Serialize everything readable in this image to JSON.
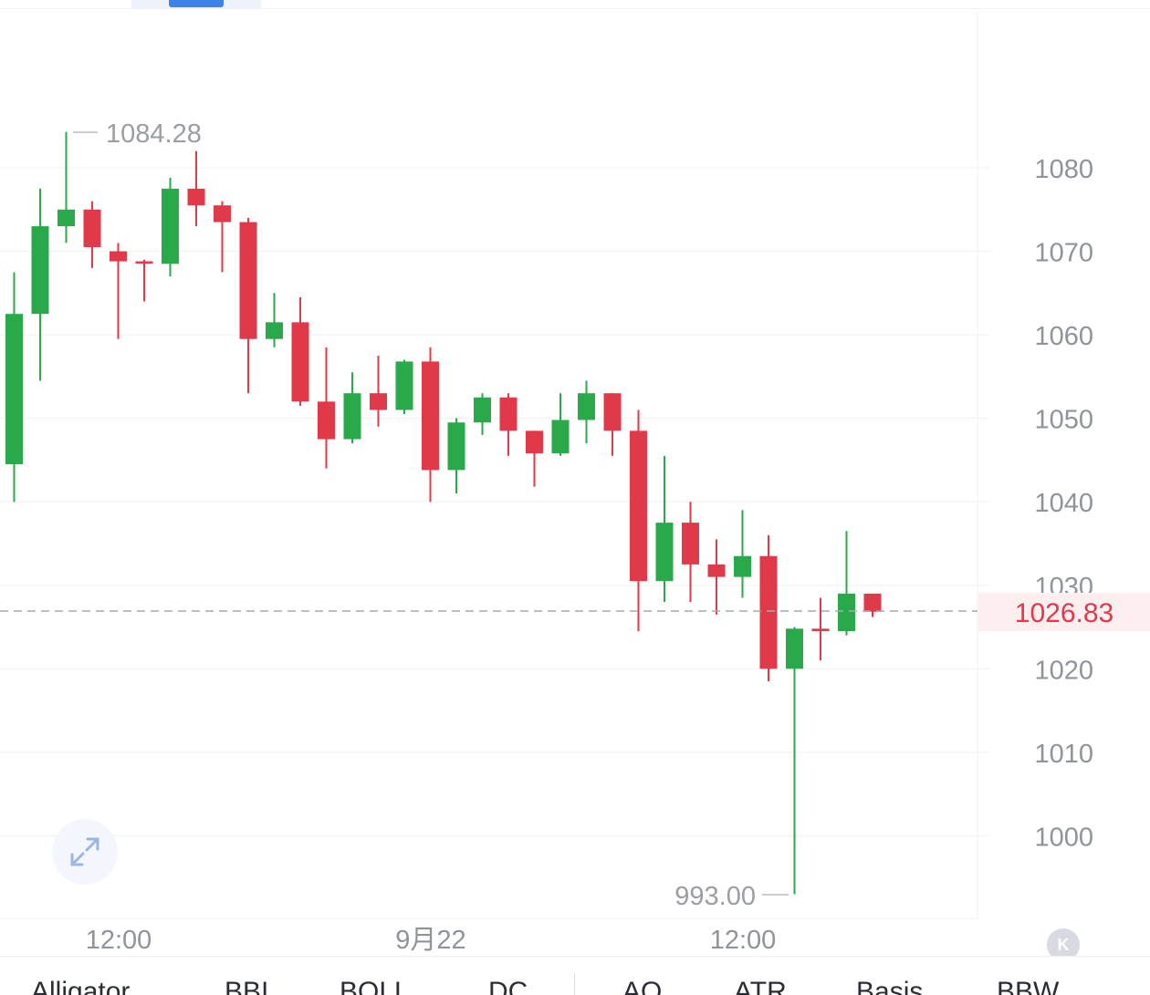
{
  "chart_data": {
    "type": "candlestick",
    "y_ticks": [
      1080,
      1070,
      1060,
      1050,
      1040,
      1030,
      1020,
      1010,
      1000
    ],
    "x_tick_labels": [
      "12:00",
      "9月22",
      "12:00"
    ],
    "current_price": "1026.83",
    "high_label": "1084.28",
    "low_label": "993.00",
    "up_color": "#2aa94a",
    "down_color": "#e0394a",
    "candles": [
      {
        "o": 1044.5,
        "h": 1067.5,
        "l": 1040.0,
        "c": 1062.5
      },
      {
        "o": 1062.5,
        "h": 1077.5,
        "l": 1054.5,
        "c": 1073.0
      },
      {
        "o": 1073.0,
        "h": 1084.3,
        "l": 1071.0,
        "c": 1075.0
      },
      {
        "o": 1075.0,
        "h": 1076.0,
        "l": 1068.0,
        "c": 1070.5
      },
      {
        "o": 1070.0,
        "h": 1071.0,
        "l": 1059.5,
        "c": 1068.8
      },
      {
        "o": 1068.8,
        "h": 1069.0,
        "l": 1064.0,
        "c": 1068.6
      },
      {
        "o": 1068.5,
        "h": 1078.8,
        "l": 1067.0,
        "c": 1077.5
      },
      {
        "o": 1077.5,
        "h": 1082.0,
        "l": 1073.0,
        "c": 1075.5
      },
      {
        "o": 1075.5,
        "h": 1076.0,
        "l": 1067.5,
        "c": 1073.5
      },
      {
        "o": 1073.5,
        "h": 1074.0,
        "l": 1053.0,
        "c": 1059.5
      },
      {
        "o": 1059.5,
        "h": 1065.0,
        "l": 1058.5,
        "c": 1061.5
      },
      {
        "o": 1061.5,
        "h": 1064.5,
        "l": 1051.5,
        "c": 1052.0
      },
      {
        "o": 1052.0,
        "h": 1058.5,
        "l": 1044.0,
        "c": 1047.5
      },
      {
        "o": 1047.5,
        "h": 1055.5,
        "l": 1047.0,
        "c": 1053.0
      },
      {
        "o": 1053.0,
        "h": 1057.5,
        "l": 1049.0,
        "c": 1051.0
      },
      {
        "o": 1051.0,
        "h": 1057.0,
        "l": 1050.5,
        "c": 1056.8
      },
      {
        "o": 1056.8,
        "h": 1058.5,
        "l": 1040.0,
        "c": 1043.8
      },
      {
        "o": 1043.8,
        "h": 1050.0,
        "l": 1041.0,
        "c": 1049.5
      },
      {
        "o": 1049.5,
        "h": 1053.0,
        "l": 1048.0,
        "c": 1052.5
      },
      {
        "o": 1052.5,
        "h": 1053.0,
        "l": 1045.5,
        "c": 1048.5
      },
      {
        "o": 1048.5,
        "h": 1048.5,
        "l": 1041.8,
        "c": 1045.8
      },
      {
        "o": 1045.8,
        "h": 1053.0,
        "l": 1045.5,
        "c": 1049.8
      },
      {
        "o": 1049.8,
        "h": 1054.5,
        "l": 1047.0,
        "c": 1053.0
      },
      {
        "o": 1053.0,
        "h": 1053.0,
        "l": 1045.5,
        "c": 1048.5
      },
      {
        "o": 1048.5,
        "h": 1051.0,
        "l": 1024.5,
        "c": 1030.5
      },
      {
        "o": 1030.5,
        "h": 1045.5,
        "l": 1028.0,
        "c": 1037.5
      },
      {
        "o": 1037.5,
        "h": 1040.0,
        "l": 1028.0,
        "c": 1032.5
      },
      {
        "o": 1032.5,
        "h": 1035.5,
        "l": 1026.5,
        "c": 1031.0
      },
      {
        "o": 1031.0,
        "h": 1039.0,
        "l": 1028.5,
        "c": 1033.5
      },
      {
        "o": 1033.5,
        "h": 1036.0,
        "l": 1018.5,
        "c": 1020.0
      },
      {
        "o": 1020.0,
        "h": 1025.0,
        "l": 993.0,
        "c": 1024.8
      },
      {
        "o": 1024.8,
        "h": 1028.5,
        "l": 1021.0,
        "c": 1024.5
      },
      {
        "o": 1024.5,
        "h": 1036.5,
        "l": 1024.0,
        "c": 1029.0
      },
      {
        "o": 1029.0,
        "h": 1029.0,
        "l": 1026.2,
        "c": 1026.83
      }
    ]
  },
  "indicators_main": [
    "Alligator",
    "BBI",
    "BOLL",
    "DC"
  ],
  "indicators_sub": [
    "AO",
    "ATR",
    "Basis",
    "BBW"
  ],
  "k_button_label": "K"
}
